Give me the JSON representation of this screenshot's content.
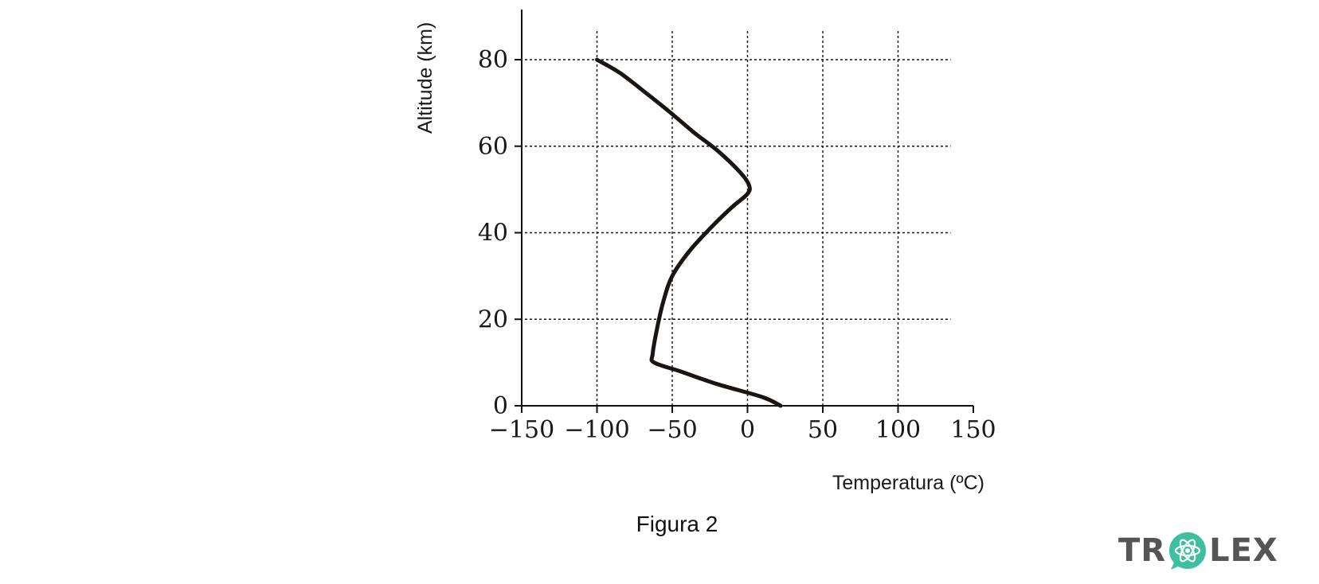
{
  "chart_data": {
    "type": "line",
    "xlabel": "Temperatura (ºC)",
    "ylabel": "Altitude (km)",
    "xlim": [
      -150,
      150
    ],
    "ylim": [
      0,
      90
    ],
    "xticks": [
      -150,
      -100,
      -50,
      0,
      50,
      100,
      150
    ],
    "xtick_labels": [
      "−150",
      "−100",
      "−50",
      "0",
      "50",
      "100",
      "150"
    ],
    "yticks": [
      0,
      20,
      40,
      60,
      80
    ],
    "ytick_labels": [
      "0",
      "20",
      "40",
      "60",
      "80"
    ],
    "grid": "dotted",
    "series": [
      {
        "points": [
          [
            22,
            0
          ],
          [
            10,
            2
          ],
          [
            -20,
            5
          ],
          [
            -45,
            8
          ],
          [
            -62,
            10
          ],
          [
            -63,
            12
          ],
          [
            -60,
            18
          ],
          [
            -56,
            24
          ],
          [
            -50,
            30
          ],
          [
            -38,
            36
          ],
          [
            -22,
            42
          ],
          [
            -10,
            46
          ],
          [
            0,
            49
          ],
          [
            1,
            51
          ],
          [
            -5,
            54
          ],
          [
            -20,
            59
          ],
          [
            -35,
            63
          ],
          [
            -52,
            68
          ],
          [
            -70,
            73
          ],
          [
            -85,
            77
          ],
          [
            -100,
            80
          ]
        ]
      }
    ]
  },
  "caption": "Figura 2",
  "logo": {
    "text_left": "TR",
    "text_right": "LEX",
    "icon": "atom-icon",
    "color": "#555555",
    "accent": "#3dbfa0"
  }
}
